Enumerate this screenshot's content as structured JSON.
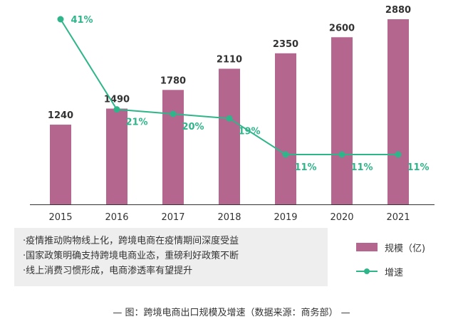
{
  "chart_data": {
    "type": "bar",
    "categories": [
      "2015",
      "2016",
      "2017",
      "2018",
      "2019",
      "2020",
      "2021"
    ],
    "series": [
      {
        "name": "规模（亿)",
        "type": "bar",
        "values": [
          1240,
          1490,
          1780,
          2110,
          2350,
          2600,
          2880
        ],
        "color": "#b5668f"
      },
      {
        "name": "增速",
        "type": "line",
        "values": [
          41,
          21,
          20,
          19,
          11,
          11,
          11
        ],
        "labels": [
          "41%",
          "21%",
          "20%",
          "19%",
          "11%",
          "11%",
          "11%"
        ],
        "color": "#2fb58a"
      }
    ],
    "bar_ylim": [
      0,
      3000
    ],
    "line_ylim": [
      0,
      45
    ],
    "legend_position": "bottom-right"
  },
  "notes": [
    "·疫情推动购物线上化，跨境电商在疫情期间深度受益",
    "·国家政策明确支持跨境电商业态，重磅利好政策不断",
    "·线上消费习惯形成，电商渗透率有望提升"
  ],
  "legend": {
    "bar_label": "规模（亿)",
    "line_label": "增速"
  },
  "caption": "— 图：跨境电商出口规模及增速（数据来源：商务部） —"
}
